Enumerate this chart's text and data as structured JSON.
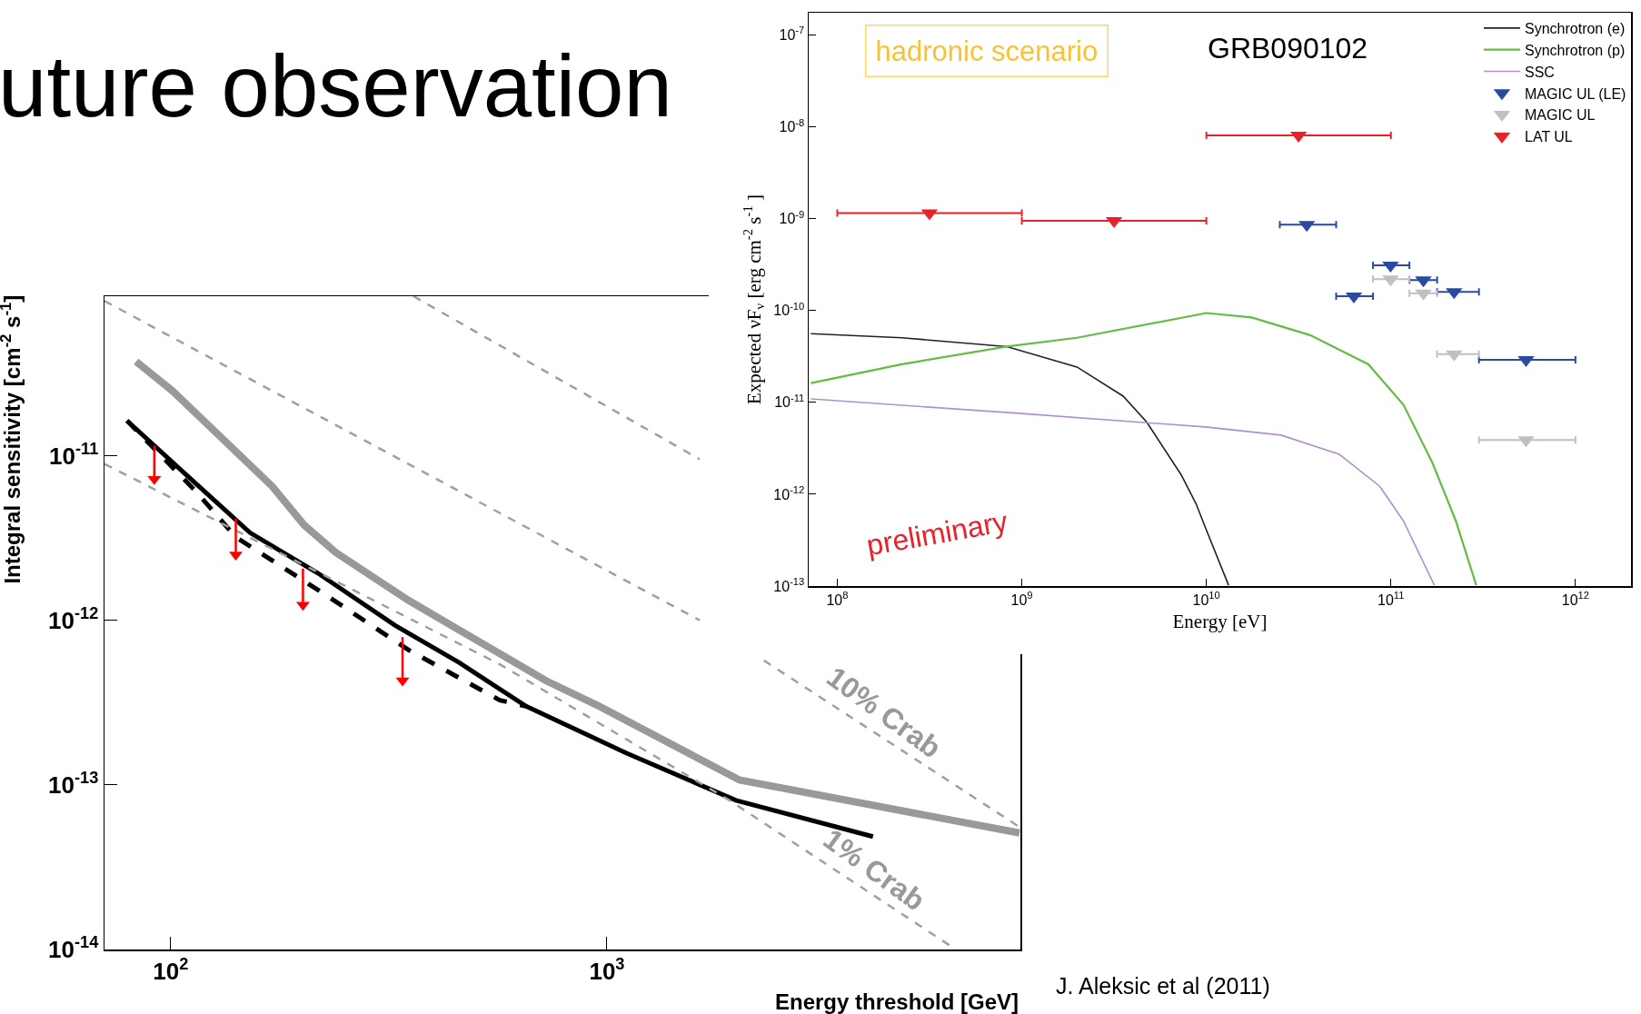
{
  "chart_data": [
    {
      "type": "line",
      "title": "uture observation",
      "xlabel": "Energy threshold [GeV]",
      "ylabel": "Integral sensitivity [cm$^{-2}$ s$^{-1}$]",
      "log": "xy",
      "xlim": [
        70.5,
        8870
      ],
      "ylim": [
        1e-14,
        9.3e-11
      ],
      "xticks": [
        {
          "value": 100,
          "label": "10$^{2}$"
        },
        {
          "value": 1000,
          "label": "10$^{3}$"
        }
      ],
      "yticks": [
        {
          "value": 1e-14,
          "label": "10$^{-14}$"
        },
        {
          "value": 1e-13,
          "label": "10$^{-13}$"
        },
        {
          "value": 1e-12,
          "label": "10$^{-12}$"
        },
        {
          "value": 1e-11,
          "label": "10$^{-11}$"
        }
      ],
      "series": [
        {
          "color": "#999999",
          "line_style": "solid",
          "x": [
            83.3,
            101,
            171,
            202,
            239,
            351,
            724,
            961,
            2014,
            8830
          ],
          "values": [
            3.73e-11,
            2.47e-11,
            6.5e-12,
            3.8e-12,
            2.58e-12,
            1.32e-12,
            4.3e-13,
            3e-13,
            1.07e-13,
            5.1e-14
          ]
        },
        {
          "color": "#000000",
          "line_style": "solid",
          "x": [
            79.4,
            106,
            152,
            217,
            327,
            460,
            653,
            1107,
            1977,
            4074
          ],
          "values": [
            1.63e-11,
            8.1e-12,
            3.4e-12,
            1.94e-12,
            9.3e-13,
            5.5e-13,
            3e-13,
            1.56e-13,
            8.05e-14,
            4.85e-14
          ]
        },
        {
          "color": "#000000",
          "line_style": "dashed",
          "x": [
            79.4,
            114,
            141,
            228,
            351,
            568,
            653
          ],
          "values": [
            1.63e-11,
            6.1e-12,
            3.2e-12,
            1.41e-12,
            6.6e-13,
            3.27e-13,
            3e-13
          ]
        },
        {
          "color": "#a0a0a0",
          "line_style": "dashed",
          "x": [
            360,
            1632
          ],
          "values": [
            9.3e-11,
            9.5e-12
          ]
        },
        {
          "color": "#a0a0a0",
          "line_style": "dashed",
          "x": [
            70.5,
            1632,
            1900,
            2290,
            8870
          ],
          "values": [
            8.7e-11,
            1e-12,
            null,
            5.7e-13,
            5.5e-14
          ]
        },
        {
          "color": "#a0a0a0",
          "line_style": "dashed",
          "x": [
            70.5,
            568,
            1910,
            6310
          ],
          "values": [
            8.9e-12,
            5.4e-13,
            8.05e-14,
            1e-14
          ]
        },
        {
          "type": "scatter",
          "color": "#ff0000",
          "marker": "triangle",
          "x": [
            91.7,
            141,
            201,
            340
          ],
          "values": [
            7.2e-12,
            2.5e-12,
            1.24e-12,
            4.3e-13
          ],
          "errors": [
            [
              7.2e-12,
              1.15e-11
            ],
            [
              2.5e-12,
              4.15e-12
            ],
            [
              1.24e-12,
              2.06e-12
            ],
            [
              4.3e-13,
              7.9e-13
            ]
          ]
        }
      ],
      "annotations": [
        "10% Crab",
        "1% Crab",
        "J. Aleksic et al (2011)"
      ]
    },
    {
      "type": "line",
      "xlabel": "Energy [eV]",
      "ylabel": "Expected νF$_{ν}$ [erg cm$^{-2}$ s$^{-1}$ ]",
      "log": "xy",
      "xlim": [
        70000000.0,
        2000000000000.0
      ],
      "ylim": [
        1e-13,
        1.75e-07
      ],
      "legend": "top right",
      "xticks": [
        {
          "value": 100000000.0,
          "label": "10$^{8}$"
        },
        {
          "value": 1000000000.0,
          "label": "10$^{9}$"
        },
        {
          "value": 10000000000.0,
          "label": "10$^{10}$"
        },
        {
          "value": 100000000000.0,
          "label": "10$^{11}$"
        },
        {
          "value": 1000000000000.0,
          "label": "10$^{12}$"
        }
      ],
      "yticks": [
        {
          "value": 1e-13,
          "label": "10$^{-13}$"
        },
        {
          "value": 1e-12,
          "label": "10$^{-12}$"
        },
        {
          "value": 1e-11,
          "label": "10$^{-11}$"
        },
        {
          "value": 1e-10,
          "label": "10$^{-10}$"
        },
        {
          "value": 1e-09,
          "label": "10$^{-9}$"
        },
        {
          "value": 1e-08,
          "label": "10$^{-8}$"
        },
        {
          "value": 1e-07,
          "label": "10$^{-7}$"
        }
      ],
      "series": [
        {
          "name": "Synchrotron (e)",
          "color": "#222222",
          "line_style": "solid",
          "x": [
            72000000.0,
            224000000.0,
            830000000.0,
            1990000000.0,
            3540000000.0,
            4750000000.0,
            7300000000.0,
            8800000000.0,
            9850000000.0,
            13200000000.0
          ],
          "values": [
            5.6e-11,
            5.05e-11,
            4.05e-11,
            2.43e-11,
            1.17e-11,
            6.1e-12,
            1.63e-12,
            7.85e-13,
            4.4e-13,
            1.02e-13
          ]
        },
        {
          "name": "Synchrotron (p)",
          "color": "#66bb44",
          "line_style": "solid",
          "x": [
            72000000.0,
            224000000.0,
            830000000.0,
            1990000000.0,
            10000000000.0,
            17600000000.0,
            36500000000.0,
            75500000000.0,
            117000000000.0,
            168000000000.0,
            225000000000.0,
            290000000000.0
          ],
          "values": [
            1.62e-11,
            2.6e-11,
            4.05e-11,
            5.05e-11,
            9.4e-11,
            8.4e-11,
            5.4e-11,
            2.6e-11,
            9.4e-12,
            2.19e-12,
            5.1e-13,
            1.02e-13
          ]
        },
        {
          "name": "SSC",
          "color": "#b090cc",
          "line_style": "solid",
          "x": [
            72000000.0,
            960000000.0,
            9850000000.0,
            25400000000.0,
            52500000000.0,
            87000000000.0,
            117000000000.0,
            172000000000.0
          ],
          "values": [
            1.09e-11,
            7.6e-12,
            5.4e-12,
            4.4e-12,
            2.72e-12,
            1.22e-12,
            5.1e-13,
            1.02e-13
          ]
        },
        {
          "type": "scatter",
          "name": "MAGIC UL (LE)",
          "color": "#2a4aa0",
          "marker": "triangle",
          "x": [
            35000000000.0,
            99600000000.0,
            150000000000.0,
            63000000000.0,
            220000000000.0,
            540000000000.0
          ],
          "values": [
            8.6e-10,
            3.1e-10,
            2.15e-10,
            1.43e-10,
            1.6e-10,
            2.9e-11
          ],
          "xerrors": [
            [
              25000000000.0,
              50500000000.0
            ],
            [
              80000000000.0,
              126000000000.0
            ],
            [
              126000000000.0,
              178000000000.0
            ],
            [
              50500000000.0,
              80000000000.0
            ],
            [
              178000000000.0,
              300000000000.0
            ],
            [
              300000000000.0,
              1000000000000.0
            ]
          ]
        },
        {
          "type": "scatter",
          "name": "MAGIC UL",
          "color": "#c0c0c0",
          "marker": "triangle",
          "x": [
            99600000000.0,
            150000000000.0,
            220000000000.0,
            540000000000.0
          ],
          "values": [
            2.2e-10,
            1.54e-10,
            3.35e-11,
            3.9e-12
          ],
          "xerrors": [
            [
              80000000000.0,
              126000000000.0
            ],
            [
              126000000000.0,
              178000000000.0
            ],
            [
              178000000000.0,
              300000000000.0
            ],
            [
              300000000000.0,
              1000000000000.0
            ]
          ]
        },
        {
          "type": "scatter",
          "name": "LAT UL",
          "color": "#e8222a",
          "marker": "triangle",
          "x": [
            316000000.0,
            3160000000.0,
            31600000000.0
          ],
          "values": [
            1.15e-09,
            9.5e-10,
            8.1e-09
          ],
          "xerrors": [
            [
              100000000.0,
              1000000000.0
            ],
            [
              1000000000.0,
              10000000000.0
            ],
            [
              10000000000.0,
              100000000000.0
            ]
          ]
        }
      ],
      "annotations": [
        "hadronic scenario",
        "GRB090102",
        "preliminary"
      ]
    }
  ]
}
